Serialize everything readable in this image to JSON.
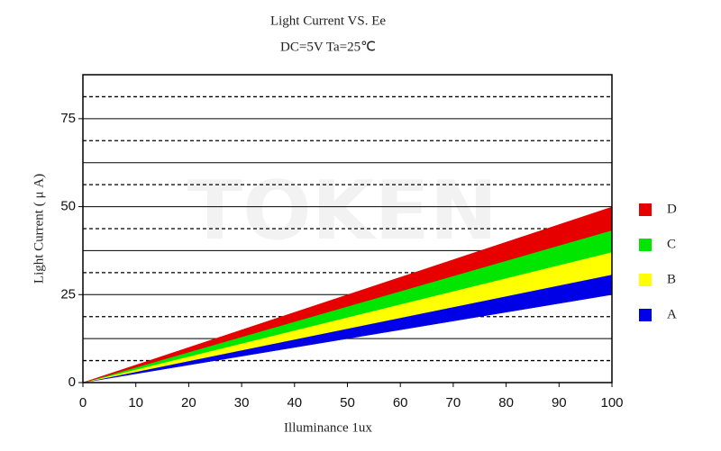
{
  "chart_data": {
    "type": "band",
    "title": "Light Current VS. Ee",
    "subtitle": "DC=5V   Ta=25℃",
    "x_label": "Illuminance   1ux",
    "y_label": "Light Current ( μ A)",
    "watermark": "TOKEN",
    "xlim": [
      0,
      100
    ],
    "ylim": [
      0,
      87.5
    ],
    "xticks": [
      0,
      10,
      20,
      30,
      40,
      50,
      60,
      70,
      80,
      90,
      100
    ],
    "yticks": [
      0,
      25,
      50,
      75
    ],
    "ygrid_solid": [
      12.5,
      25,
      37.5,
      50,
      62.5,
      75
    ],
    "ygrid_dashed": [
      6.25,
      18.75,
      31.25,
      43.75,
      56.25,
      68.75,
      81.25
    ],
    "x": [
      0,
      100
    ],
    "series": [
      {
        "name": "A",
        "color": "#0000e6",
        "low": [
          0,
          25
        ],
        "high": [
          0,
          30.7
        ]
      },
      {
        "name": "B",
        "color": "#ffff00",
        "low": [
          0,
          30.7
        ],
        "high": [
          0,
          37.1
        ]
      },
      {
        "name": "C",
        "color": "#00e600",
        "low": [
          0,
          37.1
        ],
        "high": [
          0,
          43.3
        ]
      },
      {
        "name": "D",
        "color": "#e60000",
        "low": [
          0,
          43.3
        ],
        "high": [
          0,
          49.9
        ]
      }
    ]
  }
}
